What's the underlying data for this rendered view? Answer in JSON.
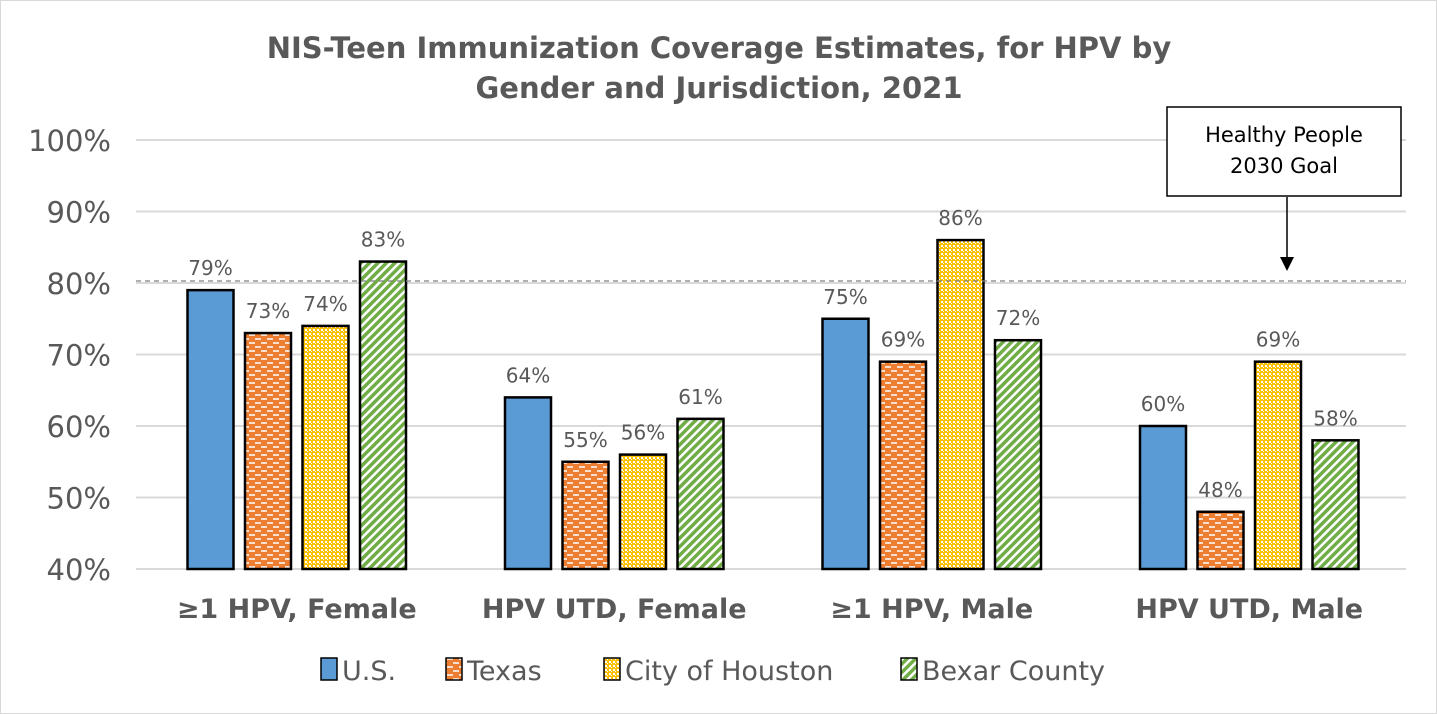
{
  "chart_data": {
    "type": "bar",
    "title": [
      "NIS-Teen Immunization Coverage Estimates, for HPV by",
      "Gender and Jurisdiction, 2021"
    ],
    "categories": [
      "≥1 HPV, Female",
      "HPV UTD, Female",
      "≥1 HPV, Male",
      "HPV UTD, Male"
    ],
    "series": [
      {
        "name": "U.S.",
        "values": [
          79,
          64,
          75,
          60
        ],
        "labels": [
          "79%",
          "64%",
          "75%",
          "60%"
        ],
        "color": "#5b9bd5",
        "pattern": "solid"
      },
      {
        "name": "Texas",
        "values": [
          73,
          55,
          69,
          48
        ],
        "labels": [
          "73%",
          "55%",
          "69%",
          "48%"
        ],
        "color": "#ed7d31",
        "pattern": "dashes"
      },
      {
        "name": "City of Houston",
        "values": [
          74,
          56,
          86,
          69
        ],
        "labels": [
          "74%",
          "56%",
          "86%",
          "69%"
        ],
        "color": "#ffc000",
        "pattern": "dots"
      },
      {
        "name": "Bexar County",
        "values": [
          83,
          61,
          72,
          58
        ],
        "labels": [
          "83%",
          "61%",
          "72%",
          "58%"
        ],
        "color": "#70ad47",
        "pattern": "diagonal-stripes"
      }
    ],
    "ylim": [
      40,
      100
    ],
    "yticks": [
      "40%",
      "50%",
      "60%",
      "70%",
      "80%",
      "90%",
      "100%"
    ],
    "grid": true,
    "legend": "bottom",
    "reference_line": {
      "value": 80,
      "label": [
        "Healthy People",
        "2030 Goal"
      ]
    }
  }
}
